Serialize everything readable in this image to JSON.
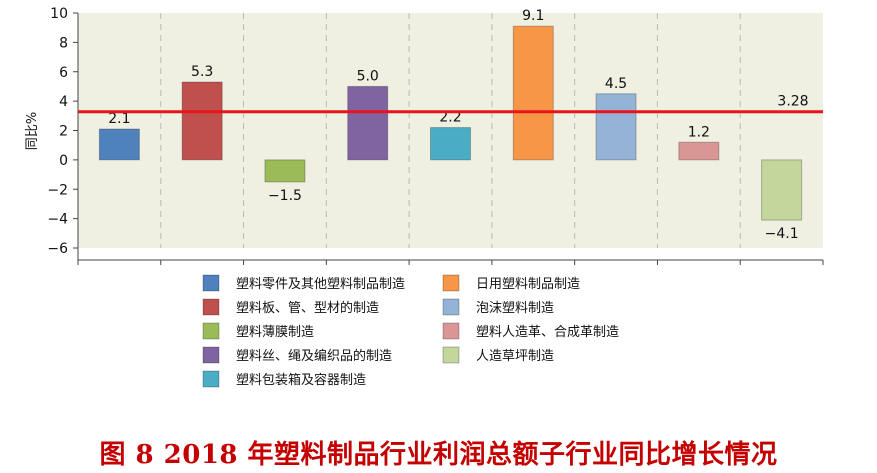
{
  "chart_data": {
    "type": "bar",
    "ylabel": "同比%",
    "ylim": [
      -6,
      10
    ],
    "yticks": [
      -6,
      -4,
      -2,
      0,
      2,
      4,
      6,
      8,
      10
    ],
    "grid": "vertical-dashed",
    "background": "#efefe2",
    "series": [
      {
        "name": "塑料零件及其他塑料制品制造",
        "value": 2.1,
        "label": "2.1",
        "color": "#4f81bd"
      },
      {
        "name": "塑料板、管、型材的制造",
        "value": 5.3,
        "label": "5.3",
        "color": "#c0504d"
      },
      {
        "name": "塑料薄膜制造",
        "value": -1.5,
        "label": "-1.5",
        "color": "#9bbb59"
      },
      {
        "name": "塑料丝、绳及编织品的制造",
        "value": 5.0,
        "label": "5.0",
        "color": "#8064a2"
      },
      {
        "name": "塑料包装箱及容器制造",
        "value": 2.2,
        "label": "2.2",
        "color": "#4bacc6"
      },
      {
        "name": "日用塑料制品制造",
        "value": 9.1,
        "label": "9.1",
        "color": "#f79646"
      },
      {
        "name": "泡沫塑料制造",
        "value": 4.5,
        "label": "4.5",
        "color": "#95b3d7"
      },
      {
        "name": "塑料人造革、合成革制造",
        "value": 1.2,
        "label": "1.2",
        "color": "#d99694"
      },
      {
        "name": "人造草坪制造",
        "value": -4.1,
        "label": "-4.1",
        "color": "#c3d69b"
      }
    ],
    "reference_line": {
      "value": 3.28,
      "label": "3.28",
      "color": "#e8141a"
    },
    "legend": {
      "placement": "bottom",
      "left_column": [
        "塑料零件及其他塑料制品制造",
        "塑料板、管、型材的制造",
        "塑料薄膜制造",
        "塑料丝、绳及编织品的制造",
        "塑料包装箱及容器制造"
      ],
      "right_column": [
        "日用塑料制品制造",
        "泡沫塑料制造",
        "塑料人造革、合成革制造",
        "人造草坪制造"
      ]
    }
  },
  "caption": "图 8  2018 年塑料制品行业利润总额子行业同比增长情况"
}
